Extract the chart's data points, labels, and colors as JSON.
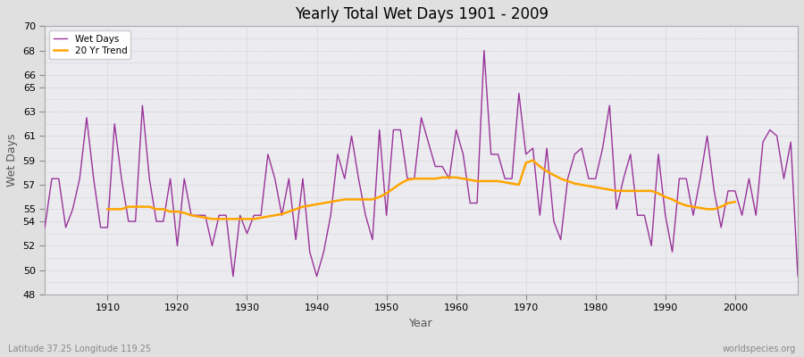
{
  "title": "Yearly Total Wet Days 1901 - 2009",
  "xlabel": "Year",
  "ylabel": "Wet Days",
  "bottom_left_label": "Latitude 37.25 Longitude 119.25",
  "bottom_right_label": "worldspecies.org",
  "wet_days_color": "#993399",
  "trend_color": "#FFA500",
  "fig_bg_color": "#e0e0e0",
  "plot_bg_color": "#ebebf0",
  "ylim": [
    48,
    70
  ],
  "yticks": [
    48,
    50,
    52,
    54,
    55,
    57,
    59,
    61,
    63,
    65,
    66,
    68,
    70
  ],
  "xticks": [
    1910,
    1920,
    1930,
    1940,
    1950,
    1960,
    1970,
    1980,
    1990,
    2000
  ],
  "years": [
    1901,
    1902,
    1903,
    1904,
    1905,
    1906,
    1907,
    1908,
    1909,
    1910,
    1911,
    1912,
    1913,
    1914,
    1915,
    1916,
    1917,
    1918,
    1919,
    1920,
    1921,
    1922,
    1923,
    1924,
    1925,
    1926,
    1927,
    1928,
    1929,
    1930,
    1931,
    1932,
    1933,
    1934,
    1935,
    1936,
    1937,
    1938,
    1939,
    1940,
    1941,
    1942,
    1943,
    1944,
    1945,
    1946,
    1947,
    1948,
    1949,
    1950,
    1951,
    1952,
    1953,
    1954,
    1955,
    1956,
    1957,
    1958,
    1959,
    1960,
    1961,
    1962,
    1963,
    1964,
    1965,
    1966,
    1967,
    1968,
    1969,
    1970,
    1971,
    1972,
    1973,
    1974,
    1975,
    1976,
    1977,
    1978,
    1979,
    1980,
    1981,
    1982,
    1983,
    1984,
    1985,
    1986,
    1987,
    1988,
    1989,
    1990,
    1991,
    1992,
    1993,
    1994,
    1995,
    1996,
    1997,
    1998,
    1999,
    2000,
    2001,
    2002,
    2003,
    2004,
    2005,
    2006,
    2007,
    2008,
    2009
  ],
  "wet_days": [
    53.5,
    57.5,
    57.5,
    53.5,
    55.0,
    57.5,
    62.5,
    57.5,
    53.5,
    53.5,
    62.0,
    57.5,
    54.0,
    54.0,
    63.5,
    57.5,
    54.0,
    54.0,
    57.5,
    52.0,
    57.5,
    54.5,
    54.5,
    54.5,
    52.0,
    54.5,
    54.5,
    49.5,
    54.5,
    53.0,
    54.5,
    54.5,
    59.5,
    57.5,
    54.5,
    57.5,
    52.5,
    57.5,
    51.5,
    49.5,
    51.5,
    54.5,
    59.5,
    57.5,
    61.0,
    57.5,
    54.5,
    52.5,
    61.5,
    54.5,
    61.5,
    61.5,
    57.5,
    57.5,
    62.5,
    60.5,
    58.5,
    58.5,
    57.5,
    61.5,
    59.5,
    55.5,
    55.5,
    68.0,
    59.5,
    59.5,
    57.5,
    57.5,
    64.5,
    59.5,
    60.0,
    54.5,
    60.0,
    54.0,
    52.5,
    57.5,
    59.5,
    60.0,
    57.5,
    57.5,
    60.0,
    63.5,
    55.0,
    57.5,
    59.5,
    54.5,
    54.5,
    52.0,
    59.5,
    54.5,
    51.5,
    57.5,
    57.5,
    54.5,
    57.5,
    61.0,
    56.5,
    53.5,
    56.5,
    56.5,
    54.5,
    57.5,
    54.5,
    60.5,
    61.5,
    61.0,
    57.5,
    60.5,
    49.5
  ],
  "trend_years": [
    1910,
    1911,
    1912,
    1913,
    1914,
    1915,
    1916,
    1917,
    1918,
    1919,
    1920,
    1921,
    1922,
    1923,
    1924,
    1925,
    1926,
    1927,
    1928,
    1929,
    1930,
    1931,
    1932,
    1933,
    1934,
    1935,
    1936,
    1937,
    1938,
    1939,
    1940,
    1941,
    1942,
    1943,
    1944,
    1945,
    1946,
    1947,
    1948,
    1949,
    1950,
    1951,
    1952,
    1953,
    1954,
    1955,
    1956,
    1957,
    1958,
    1959,
    1960,
    1961,
    1962,
    1963,
    1964,
    1965,
    1966,
    1967,
    1968,
    1969,
    1970,
    1971,
    1972,
    1973,
    1974,
    1975,
    1976,
    1977,
    1978,
    1979,
    1980,
    1981,
    1982,
    1983,
    1984,
    1985,
    1986,
    1987,
    1988,
    1989,
    1990,
    1991,
    1992,
    1993,
    1994,
    1995,
    1996,
    1997,
    1998,
    1999,
    2000
  ],
  "trend_values": [
    55.0,
    55.0,
    55.0,
    55.2,
    55.2,
    55.2,
    55.2,
    55.0,
    55.0,
    54.8,
    54.8,
    54.7,
    54.5,
    54.4,
    54.3,
    54.2,
    54.2,
    54.2,
    54.2,
    54.2,
    54.2,
    54.2,
    54.3,
    54.4,
    54.5,
    54.6,
    54.8,
    55.0,
    55.2,
    55.3,
    55.4,
    55.5,
    55.6,
    55.7,
    55.8,
    55.8,
    55.8,
    55.8,
    55.8,
    56.0,
    56.3,
    56.7,
    57.1,
    57.4,
    57.5,
    57.5,
    57.5,
    57.5,
    57.6,
    57.6,
    57.6,
    57.5,
    57.4,
    57.3,
    57.3,
    57.3,
    57.3,
    57.2,
    57.1,
    57.0,
    58.8,
    59.0,
    58.5,
    58.1,
    57.8,
    57.5,
    57.3,
    57.1,
    57.0,
    56.9,
    56.8,
    56.7,
    56.6,
    56.5,
    56.5,
    56.5,
    56.5,
    56.5,
    56.5,
    56.3,
    56.0,
    55.8,
    55.5,
    55.3,
    55.2,
    55.1,
    55.0,
    55.0,
    55.2,
    55.5,
    55.6
  ]
}
